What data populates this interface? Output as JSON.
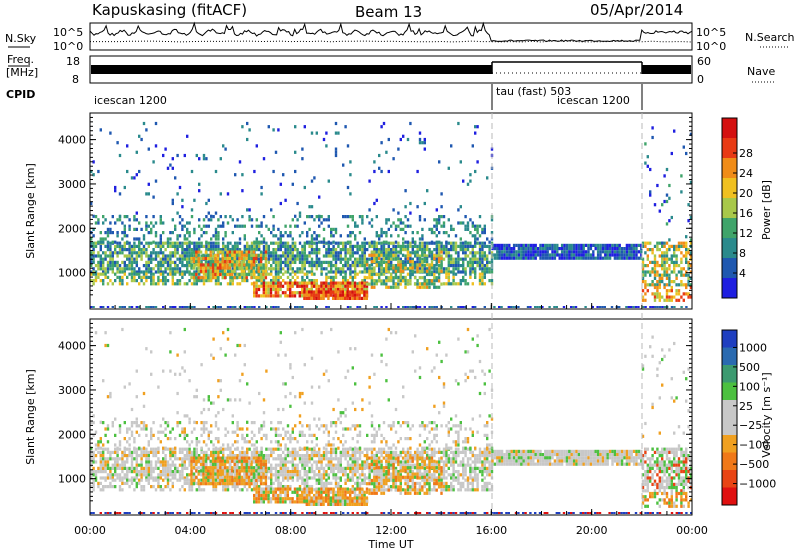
{
  "header": {
    "station": "Kapuskasing (fitACF)",
    "beam": "Beam 13",
    "date": "05/Apr/2014"
  },
  "top_panels": {
    "nsky_label": "N.Sky",
    "nsearch_label": "N.Search",
    "freq_label_1": "Freq.",
    "freq_label_2": "[MHz]",
    "nave_label": "Nave",
    "cpid_label": "CPID",
    "noise_ticks": [
      "10^5",
      "10^0"
    ],
    "freq_ticks_left": [
      "18",
      "8"
    ],
    "freq_ticks_right": [
      "60",
      "0"
    ],
    "cpid_segments": [
      {
        "label": "icescan 1200"
      },
      {
        "label": "tau (fast) 503"
      },
      {
        "label": "icescan 1200"
      }
    ]
  },
  "chart_data": [
    {
      "type": "heatmap",
      "name": "power",
      "ylabel": "Slant Range [km]",
      "y_ticks": [
        "1000",
        "2000",
        "3000",
        "4000"
      ],
      "ylim": [
        180,
        4600
      ],
      "colorbar": {
        "label": "Power [dB]",
        "ticks": [
          "4",
          "8",
          "12",
          "16",
          "20",
          "24",
          "28"
        ],
        "colors": [
          "#1f1fe0",
          "#1f58b0",
          "#2a8a8c",
          "#3fa46a",
          "#a8c84a",
          "#f0c020",
          "#f08c18",
          "#e83a14",
          "#d41010"
        ]
      }
    },
    {
      "type": "heatmap",
      "name": "velocity",
      "ylabel": "Slant Range [km]",
      "y_ticks": [
        "1000",
        "2000",
        "3000",
        "4000"
      ],
      "ylim": [
        180,
        4600
      ],
      "colorbar": {
        "label": "Velocity [m s⁻¹]",
        "ticks": [
          "1000",
          "500",
          "100",
          "25",
          "−25",
          "−100",
          "−500",
          "−1000"
        ],
        "colors": [
          "#1f3fc0",
          "#2a6ab0",
          "#3c9a70",
          "#4cc040",
          "#c8c8c8",
          "#c8c8c8",
          "#f0a020",
          "#f07818",
          "#e84414",
          "#e01010"
        ]
      }
    }
  ],
  "x_axis": {
    "label": "Time UT",
    "ticks": [
      "00:00",
      "04:00",
      "08:00",
      "12:00",
      "16:00",
      "20:00",
      "00:00"
    ]
  }
}
